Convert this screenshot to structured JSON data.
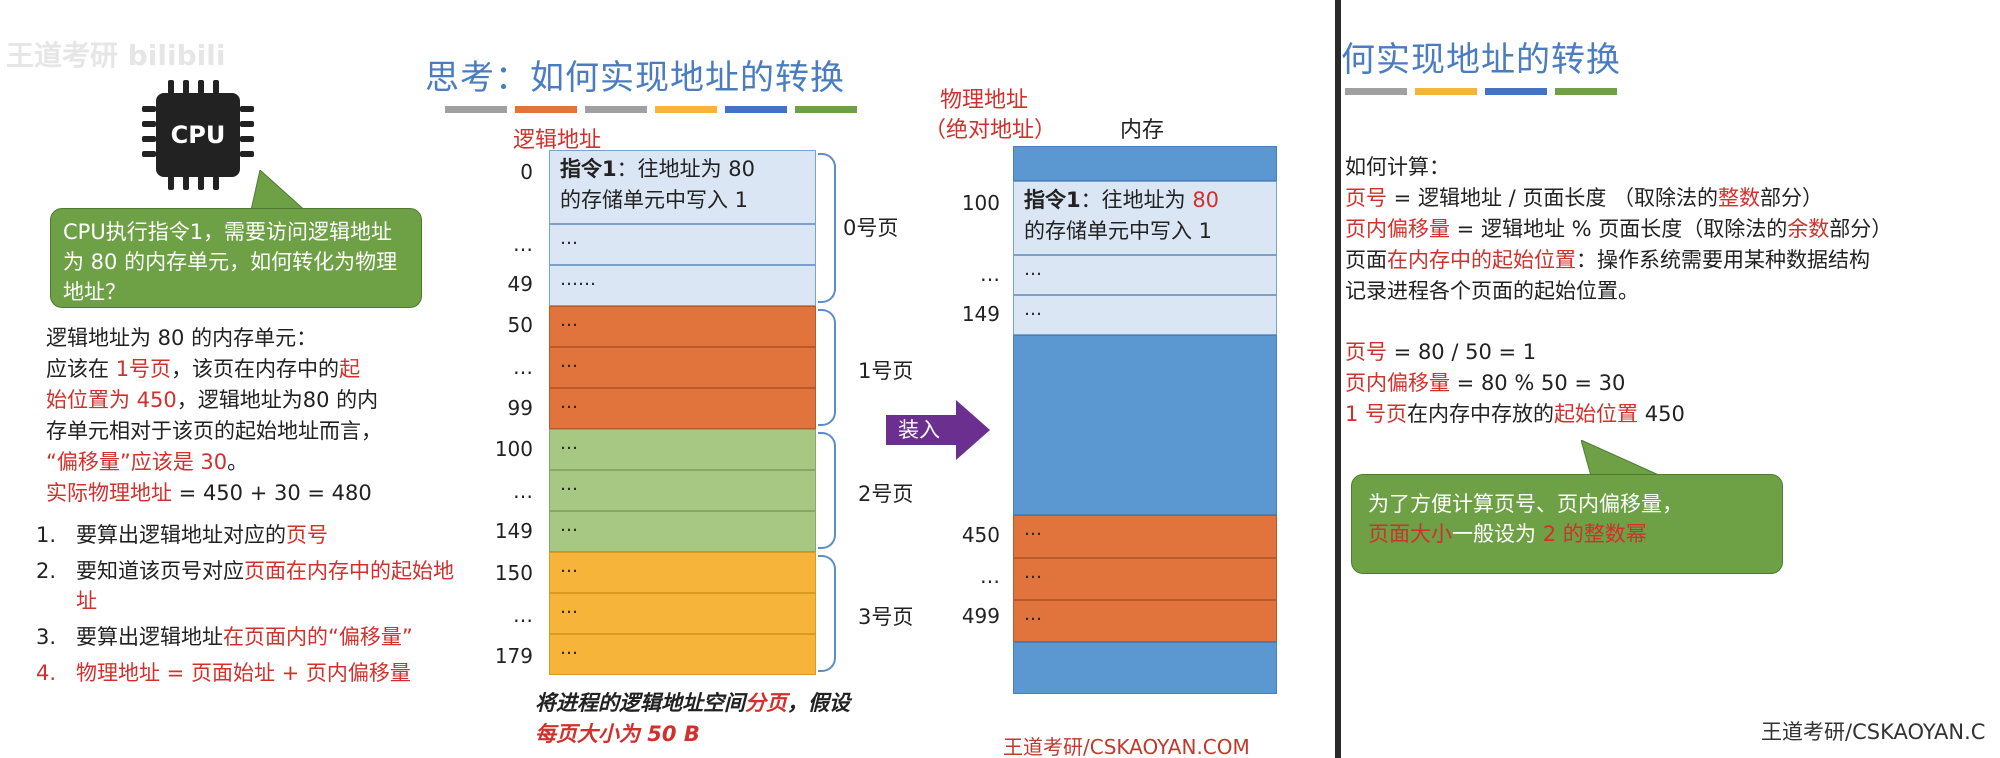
{
  "left": {
    "watermark": "王道考研 bilibili",
    "title": "思考：如何实现地址的转换",
    "stripe_colors": [
      "#a0a0a0",
      "#e0743c",
      "#a0a0a0",
      "#f6b43b",
      "#4472c4",
      "#6ea046"
    ],
    "cpu_label": "CPU",
    "cpu_callout": "CPU执行指令1，需要访问逻辑地址为 80 的内存单元，如何转化为物理地址？",
    "explain": {
      "line1": "逻辑地址为 80 的内存单元：",
      "line2a": "应该在 ",
      "line2b": "1号页",
      "line2c": "，该页在内存中的",
      "line2d": "起",
      "line3a": "始位置为 450",
      "line3b": "，逻辑地址为80 的内",
      "line4": "存单元相对于该页的起始地址而言，",
      "line5a": "“偏移量”应该是 30",
      "line5b": "。",
      "line6": "实际物理地址 = 450 + 30 = 480"
    },
    "steps": [
      {
        "num": "1.",
        "a": "要算出逻辑地址对应的",
        "b": "页号",
        "c": ""
      },
      {
        "num": "2.",
        "a": "要知道该页号对应",
        "b": "页面在内存中的起始地址",
        "c": ""
      },
      {
        "num": "3.",
        "a": "要算出逻辑地址",
        "b": "在页面内的“偏移量”",
        "c": ""
      },
      {
        "num": "4.",
        "a": "物理地址 = 页面始址 + 页内偏移量",
        "b": "",
        "c": ""
      }
    ],
    "logical_label": "逻辑地址",
    "physical_label_1": "物理地址",
    "physical_label_2": "（绝对地址）",
    "memory_label": "内存",
    "logical_addrs": [
      "0",
      "…",
      "49",
      "50",
      "…",
      "99",
      "100",
      "…",
      "149",
      "150",
      "…",
      "179"
    ],
    "logical_cells": {
      "instr_bold": "指令1",
      "instr_rest": "：往地址为 80",
      "instr_line2": "的存储单元中写入 1",
      "dots": "…",
      "dots6": "……"
    },
    "pages": [
      "0号页",
      "1号页",
      "2号页",
      "3号页"
    ],
    "load_label": "装入",
    "physical_addrs": [
      "100",
      "…",
      "149",
      "450",
      "…",
      "499"
    ],
    "phys_instr_bold": "指令1",
    "phys_instr_rest": "：往地址为 ",
    "phys_instr_num": "80",
    "phys_instr_line2": "的存储单元中写入 1",
    "caption_a": "将进程的逻辑地址空间",
    "caption_b": "分",
    "caption_c": "页",
    "caption_d": "，假设",
    "caption_e": "每页大小为 50 B",
    "footer": "王道考研/CSKAOYAN.COM"
  },
  "right": {
    "title": "何实现地址的转换",
    "stripe_colors": [
      "#a0a0a0",
      "#f6b43b",
      "#4472c4",
      "#6ea046"
    ],
    "how": "如何计算：",
    "l1a": "页号",
    "l1b": " = 逻辑地址 / 页面长度 （取除法的",
    "l1c": "整数",
    "l1d": "部分）",
    "l2a": "页内偏移量",
    "l2b": " = 逻辑地址 % 页面长度（取除法的",
    "l2c": "余数",
    "l2d": "部分）",
    "l3a": "页面",
    "l3b": "在内存中的起始位置",
    "l3c": "：操作系统需要用某种数据结构",
    "l4": "记录进程各个页面的起始位置。",
    "c1a": "页号",
    "c1b": " = 80 / 50 = 1",
    "c2a": "页内偏移量",
    "c2b": " = 80 % 50 = 30",
    "c3a": "1 号页",
    "c3b": "在内存中存放的",
    "c3c": "起始位置",
    "c3d": " 450",
    "callout_1": "为了方便计算页号、页内偏移量，",
    "callout_2a": "页面大小",
    "callout_2b": "一般设为 ",
    "callout_2c": "2 的整数幂",
    "footer": "王道考研/CSKAOYAN.C"
  }
}
